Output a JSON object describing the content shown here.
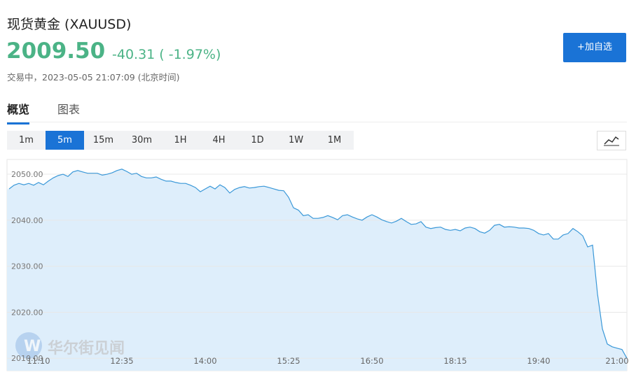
{
  "header": {
    "title": "现货黄金 (XAUUSD)",
    "price": "2009.50",
    "change": "-40.31 ( -1.97%)",
    "status": "交易中，2023-05-05 21:07:09 (北京时间)",
    "add_button": "+加自选"
  },
  "tabs": {
    "items": [
      "概览",
      "图表"
    ],
    "selected": 0
  },
  "intervals": {
    "items": [
      "1m",
      "5m",
      "15m",
      "30m",
      "1H",
      "4H",
      "1D",
      "1W",
      "1M"
    ],
    "selected": 1
  },
  "watermark": "华尔街见闻",
  "chart_data": {
    "type": "area",
    "color": "#3a98d8",
    "fill": "#deeefb",
    "grid": true,
    "ylim": [
      2007.3,
      2053.2
    ],
    "yticks": [
      {
        "value": 2010,
        "label": "2010.00"
      },
      {
        "value": 2020,
        "label": "2020.00"
      },
      {
        "value": 2030,
        "label": "2030.00"
      },
      {
        "value": 2040,
        "label": "2040.00"
      },
      {
        "value": 2050,
        "label": "2050.00"
      }
    ],
    "categories": [
      null,
      null,
      null,
      null,
      null,
      null,
      "11:10",
      null,
      null,
      null,
      null,
      null,
      null,
      null,
      null,
      null,
      null,
      null,
      null,
      null,
      null,
      null,
      null,
      "12:35",
      null,
      null,
      null,
      null,
      null,
      null,
      null,
      null,
      null,
      null,
      null,
      null,
      null,
      null,
      null,
      null,
      "14:00",
      null,
      null,
      null,
      null,
      null,
      null,
      null,
      null,
      null,
      null,
      null,
      null,
      null,
      null,
      null,
      null,
      "15:25",
      null,
      null,
      null,
      null,
      null,
      null,
      null,
      null,
      null,
      null,
      null,
      null,
      null,
      null,
      null,
      null,
      "16:50",
      null,
      null,
      null,
      null,
      null,
      null,
      null,
      null,
      null,
      null,
      null,
      null,
      null,
      null,
      null,
      null,
      "18:15",
      null,
      null,
      null,
      null,
      null,
      null,
      null,
      null,
      null,
      null,
      null,
      null,
      null,
      null,
      null,
      null,
      "19:40",
      null,
      null,
      null,
      null,
      null,
      null,
      null,
      null,
      null,
      null,
      null,
      null,
      null,
      null,
      null,
      "21:00",
      null,
      null
    ],
    "values": [
      2046.8,
      2047.6,
      2048.0,
      2047.7,
      2048.0,
      2047.6,
      2048.2,
      2047.7,
      2048.5,
      2049.2,
      2049.7,
      2050.0,
      2049.5,
      2050.5,
      2050.8,
      2050.5,
      2050.2,
      2050.2,
      2050.2,
      2049.8,
      2050.0,
      2050.3,
      2050.8,
      2051.1,
      2050.6,
      2050.0,
      2050.2,
      2049.5,
      2049.2,
      2049.2,
      2049.4,
      2048.9,
      2048.5,
      2048.5,
      2048.2,
      2048.0,
      2048.0,
      2047.6,
      2047.1,
      2046.2,
      2046.8,
      2047.4,
      2046.8,
      2047.7,
      2047.1,
      2045.9,
      2046.7,
      2047.1,
      2047.3,
      2047.0,
      2047.1,
      2047.3,
      2047.4,
      2047.1,
      2046.8,
      2046.5,
      2046.4,
      2045.0,
      2042.7,
      2042.2,
      2041.0,
      2041.2,
      2040.4,
      2040.4,
      2040.6,
      2041.0,
      2040.6,
      2040.1,
      2041.0,
      2041.2,
      2040.7,
      2040.3,
      2040.0,
      2040.7,
      2041.2,
      2040.7,
      2040.1,
      2039.7,
      2039.4,
      2039.8,
      2040.4,
      2039.7,
      2039.1,
      2039.2,
      2039.7,
      2038.5,
      2038.2,
      2038.4,
      2038.5,
      2038.0,
      2037.8,
      2038.0,
      2037.7,
      2038.3,
      2038.5,
      2038.2,
      2037.5,
      2037.2,
      2037.8,
      2038.9,
      2039.1,
      2038.5,
      2038.6,
      2038.5,
      2038.3,
      2038.3,
      2038.2,
      2037.8,
      2037.1,
      2036.8,
      2037.1,
      2035.9,
      2035.9,
      2036.8,
      2037.1,
      2038.2,
      2037.5,
      2036.6,
      2034.2,
      2034.6,
      2024.0,
      2016.4,
      2013.1,
      2012.5,
      2012.2,
      2011.9,
      2010.0
    ]
  }
}
